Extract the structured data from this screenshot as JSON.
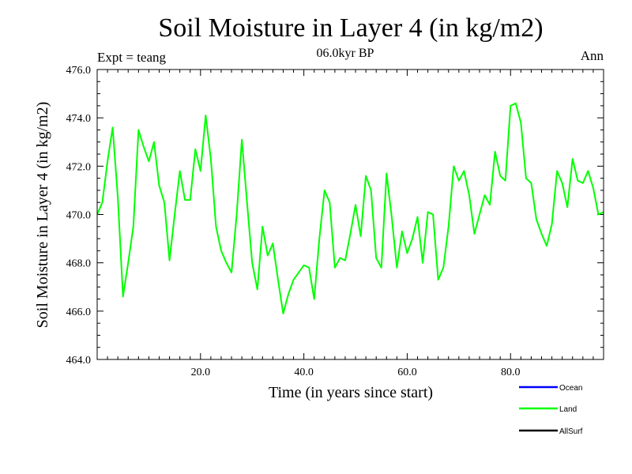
{
  "chart_data": {
    "type": "line",
    "title": "Soil Moisture in Layer 4 (in kg/m2)",
    "subtitle": "06.0kyr BP",
    "left_note": "Expt = teang",
    "right_note": "Ann",
    "xlabel": "Time (in years since start)",
    "ylabel": "Soil Moisture in Layer 4 (in kg/m2)",
    "xlim": [
      0,
      98
    ],
    "ylim": [
      464.0,
      476.0
    ],
    "x_ticks": [
      20,
      40,
      60,
      80
    ],
    "x_tick_labels": [
      "20.0",
      "40.0",
      "60.0",
      "80.0"
    ],
    "y_ticks": [
      464,
      466,
      468,
      470,
      472,
      474,
      476
    ],
    "y_tick_labels": [
      "464.0",
      "466.0",
      "468.0",
      "470.0",
      "472.0",
      "474.0",
      "476.0"
    ],
    "legend": [
      {
        "name": "Ocean",
        "color": "#0000ff"
      },
      {
        "name": "Land",
        "color": "#00ff00"
      },
      {
        "name": "AllSurf",
        "color": "#000000"
      }
    ],
    "series": [
      {
        "name": "Land",
        "color": "#00ff00",
        "x": [
          0,
          1,
          2,
          3,
          4,
          5,
          6,
          7,
          8,
          9,
          10,
          11,
          12,
          13,
          14,
          15,
          16,
          17,
          18,
          19,
          20,
          21,
          22,
          23,
          24,
          25,
          26,
          27,
          28,
          29,
          30,
          31,
          32,
          33,
          34,
          35,
          36,
          37,
          38,
          39,
          40,
          41,
          42,
          43,
          44,
          45,
          46,
          47,
          48,
          49,
          50,
          51,
          52,
          53,
          54,
          55,
          56,
          57,
          58,
          59,
          60,
          61,
          62,
          63,
          64,
          65,
          66,
          67,
          68,
          69,
          70,
          71,
          72,
          73,
          74,
          75,
          76,
          77,
          78,
          79,
          80,
          81,
          82,
          83,
          84,
          85,
          86,
          87,
          88,
          89,
          90,
          91,
          92,
          93,
          94,
          95,
          96,
          97,
          98
        ],
        "values": [
          470.0,
          470.5,
          472.2,
          473.6,
          470.7,
          466.6,
          468.0,
          469.5,
          473.5,
          472.8,
          472.2,
          473.0,
          471.2,
          470.5,
          468.1,
          470.0,
          471.8,
          470.6,
          470.6,
          472.7,
          471.8,
          474.1,
          472.3,
          469.5,
          468.5,
          468.0,
          467.6,
          470.0,
          473.1,
          470.5,
          468.0,
          466.9,
          469.5,
          468.3,
          468.8,
          467.3,
          465.9,
          466.7,
          467.3,
          467.6,
          467.9,
          467.8,
          466.5,
          469.0,
          471.0,
          470.5,
          467.8,
          468.2,
          468.1,
          469.2,
          470.4,
          469.1,
          471.6,
          471.0,
          468.2,
          467.8,
          471.7,
          469.9,
          467.8,
          469.3,
          468.4,
          469.0,
          469.9,
          468.0,
          470.1,
          470.0,
          467.3,
          467.8,
          469.5,
          472.0,
          471.4,
          471.8,
          470.8,
          469.2,
          470.0,
          470.8,
          470.4,
          472.6,
          471.6,
          471.4,
          474.5,
          474.6,
          473.8,
          471.5,
          471.3,
          469.8,
          469.2,
          468.7,
          469.6,
          471.8,
          471.3,
          470.3,
          472.3,
          471.4,
          471.3,
          471.8,
          471.1,
          470.0,
          470.1
        ]
      }
    ]
  }
}
